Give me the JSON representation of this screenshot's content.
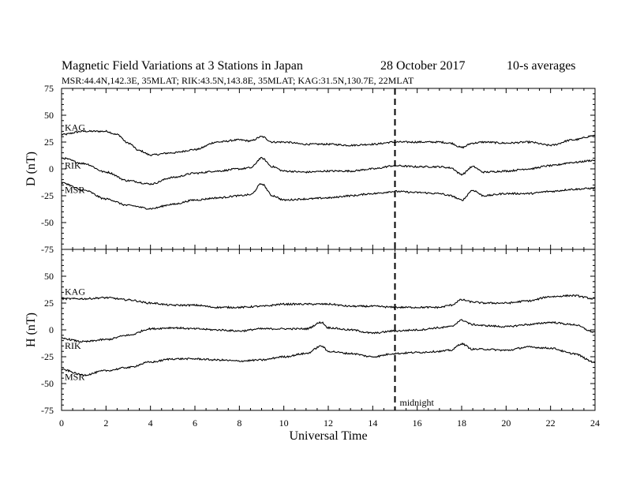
{
  "chart_data": {
    "type": "line",
    "title": "Magnetic Field Variations at 3 Stations in Japan",
    "date": "28 October 2017",
    "averaging": "10-s averages",
    "subtitle": "MSR:44.4N,142.3E, 35MLAT;  RIK:43.5N,143.8E, 35MLAT;  KAG:31.5N,130.7E, 22MLAT",
    "xlabel": "Universal Time",
    "xlim": [
      0,
      24
    ],
    "xticks": [
      0,
      2,
      4,
      6,
      8,
      10,
      12,
      14,
      16,
      18,
      20,
      22,
      24
    ],
    "marker": {
      "x": 15,
      "label": "midnight"
    },
    "panels": [
      {
        "ylabel": "D (nT)",
        "ylim": [
          -75,
          75
        ],
        "yticks": [
          75,
          50,
          25,
          0,
          -25,
          -50,
          -75
        ],
        "series": [
          {
            "name": "KAG",
            "x": [
              0,
              1,
              2,
              2.5,
              3,
              3.5,
              4,
              5,
              6,
              7,
              8,
              8.5,
              9,
              9.5,
              10,
              11,
              12,
              13,
              14,
              15,
              16,
              17,
              17.5,
              18,
              18.5,
              19,
              20,
              21,
              22,
              23,
              24
            ],
            "values": [
              32,
              35,
              35,
              32,
              24,
              17,
              13,
              15,
              18,
              25,
              27,
              26,
              30,
              25,
              25,
              23,
              23,
              22,
              23,
              25,
              25,
              25,
              24,
              20,
              24,
              25,
              24,
              25,
              22,
              27,
              31
            ]
          },
          {
            "name": "RIK",
            "x": [
              0,
              1,
              2,
              3,
              4,
              5,
              6,
              7,
              8,
              8.5,
              9,
              9.5,
              10,
              11,
              12,
              13,
              14,
              15,
              16,
              17,
              17.5,
              18,
              18.5,
              19,
              20,
              21,
              22,
              23,
              24
            ],
            "values": [
              10,
              5,
              -3,
              -11,
              -14,
              -8,
              -4,
              -2,
              0,
              1,
              10,
              2,
              -2,
              -3,
              -2,
              -2,
              0,
              3,
              2,
              2,
              1,
              -5,
              2,
              -3,
              -2,
              0,
              3,
              6,
              8
            ]
          },
          {
            "name": "MSR",
            "x": [
              0,
              1,
              2,
              3,
              4,
              5,
              6,
              7,
              8,
              8.5,
              9,
              9.5,
              10,
              11,
              12,
              13,
              14,
              15,
              16,
              17,
              17.5,
              18,
              18.5,
              19,
              20,
              21,
              22,
              23,
              24
            ],
            "values": [
              -13,
              -20,
              -28,
              -34,
              -37,
              -33,
              -29,
              -27,
              -25,
              -24,
              -14,
              -25,
              -29,
              -28,
              -27,
              -25,
              -23,
              -21,
              -22,
              -23,
              -25,
              -29,
              -20,
              -25,
              -23,
              -23,
              -21,
              -19,
              -18
            ]
          }
        ]
      },
      {
        "ylabel": "H (nT)",
        "ylim": [
          -75,
          75
        ],
        "yticks": [
          75,
          50,
          25,
          0,
          -25,
          -50,
          -75
        ],
        "series": [
          {
            "name": "KAG",
            "x": [
              0,
              1,
              2,
              3,
              4,
              5,
              6,
              7,
              8,
              9,
              10,
              11,
              12,
              13,
              14,
              15,
              16,
              17,
              17.5,
              18,
              18.5,
              19,
              20,
              21,
              22,
              23,
              24
            ],
            "values": [
              29,
              29,
              30,
              28,
              25,
              23,
              23,
              21,
              21,
              22,
              24,
              24,
              24,
              22,
              22,
              21,
              21,
              21,
              23,
              28,
              26,
              25,
              25,
              27,
              31,
              32,
              29
            ]
          },
          {
            "name": "RIK",
            "x": [
              0,
              1,
              2,
              3,
              4,
              5,
              6,
              7,
              8,
              9,
              10,
              11,
              11.7,
              12,
              13,
              14,
              15,
              16,
              17,
              17.5,
              18,
              18.5,
              19,
              20,
              21,
              22,
              23,
              24
            ],
            "values": [
              -8,
              -11,
              -9,
              -5,
              1,
              2,
              1,
              0,
              -1,
              1,
              1,
              1,
              7,
              2,
              0,
              -3,
              -1,
              0,
              2,
              3,
              9,
              5,
              4,
              3,
              5,
              7,
              5,
              -2
            ]
          },
          {
            "name": "MSR",
            "x": [
              0,
              1,
              2,
              3,
              4,
              5,
              6,
              7,
              8,
              9,
              10,
              11,
              11.7,
              12,
              13,
              14,
              15,
              16,
              17,
              17.5,
              18,
              18.5,
              19,
              20,
              21,
              22,
              23,
              24
            ],
            "values": [
              -37,
              -42,
              -38,
              -35,
              -30,
              -27,
              -27,
              -28,
              -29,
              -28,
              -25,
              -22,
              -15,
              -20,
              -22,
              -25,
              -22,
              -21,
              -20,
              -19,
              -13,
              -18,
              -18,
              -19,
              -16,
              -17,
              -22,
              -30
            ]
          }
        ]
      }
    ]
  }
}
